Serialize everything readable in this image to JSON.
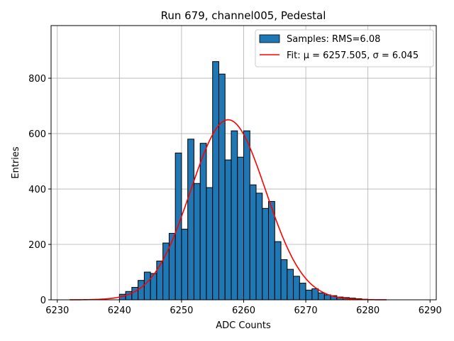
{
  "chart_data": {
    "type": "bar",
    "title": "Run 679, channel005, Pedestal",
    "xlabel": "ADC Counts",
    "ylabel": "Entries",
    "xlim": [
      6229,
      6291
    ],
    "ylim": [
      0,
      990
    ],
    "xticks": [
      6230,
      6240,
      6250,
      6260,
      6270,
      6280,
      6290
    ],
    "yticks": [
      0,
      200,
      400,
      600,
      800
    ],
    "grid": true,
    "legend_position": "top-right",
    "colors": {
      "bars": "#1f77b4",
      "bar_edge": "#000000",
      "fit": "#ff0000",
      "grid": "#b0b0b0"
    },
    "histogram": {
      "name": "Samples: RMS=6.08",
      "bin_width": 1,
      "bin_left_edges": [
        6240,
        6241,
        6242,
        6243,
        6244,
        6245,
        6246,
        6247,
        6248,
        6249,
        6250,
        6251,
        6252,
        6253,
        6254,
        6255,
        6256,
        6257,
        6258,
        6259,
        6260,
        6261,
        6262,
        6263,
        6264,
        6265,
        6266,
        6267,
        6268,
        6269,
        6270,
        6271,
        6272,
        6273,
        6274,
        6275,
        6276,
        6277,
        6278,
        6279
      ],
      "values": [
        20,
        30,
        45,
        70,
        100,
        95,
        140,
        205,
        240,
        530,
        255,
        580,
        420,
        565,
        405,
        860,
        815,
        505,
        610,
        515,
        610,
        415,
        385,
        330,
        355,
        210,
        145,
        110,
        85,
        60,
        35,
        40,
        25,
        18,
        15,
        10,
        8,
        6,
        4,
        2
      ]
    },
    "fit": {
      "name": "Fit: μ = 6257.505, σ = 6.045",
      "mu": 6257.505,
      "sigma": 6.045,
      "amplitude": 650,
      "x_range": [
        6232,
        6283
      ]
    }
  }
}
